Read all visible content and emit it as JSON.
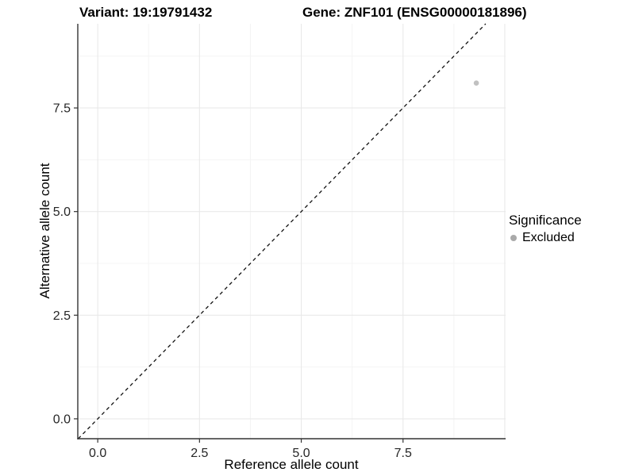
{
  "chart_data": {
    "type": "scatter",
    "titles": {
      "variant": "Variant: 19:19791432",
      "gene": "Gene: ZNF101 (ENSG00000181896)"
    },
    "xlabel": "Reference allele count",
    "ylabel": "Alternative allele count",
    "x_ticks": [
      0,
      2.5,
      5,
      7.5
    ],
    "x_tick_labels": [
      "0.0",
      "2.5",
      "5.0",
      "7.5"
    ],
    "y_ticks": [
      0,
      2.5,
      5,
      7.5
    ],
    "y_tick_labels": [
      "0.0",
      "2.5",
      "5.0",
      "7.5"
    ],
    "x_range": [
      -0.49,
      10.02
    ],
    "y_range": [
      -0.48,
      9.53
    ],
    "x_grid_major": [
      0,
      2.5,
      5,
      7.5,
      10
    ],
    "x_grid_minor": [
      1.25,
      3.75,
      6.25,
      8.75
    ],
    "y_grid_major": [
      0,
      2.5,
      5,
      7.5
    ],
    "y_grid_minor": [
      1.25,
      3.75,
      6.25,
      8.75
    ],
    "grid": true,
    "identity_line": {
      "slope": 1,
      "intercept": 0,
      "style": "dashed",
      "color": "#111111"
    },
    "series": [
      {
        "name": "Excluded",
        "color": "#c1c1c1",
        "point_radius": 3.3,
        "points": [
          {
            "x": 9.3,
            "y": 8.1
          }
        ]
      }
    ],
    "legend": {
      "title": "Significance",
      "position": "right",
      "items": [
        {
          "label": "Excluded",
          "color": "#a9a9a9"
        }
      ]
    },
    "colors": {
      "grid_major": "#e9e9e9",
      "grid_minor": "#f4f4f4",
      "axis_line": "#333333",
      "tick_mark": "#333333",
      "tick_label": "#262626"
    }
  }
}
